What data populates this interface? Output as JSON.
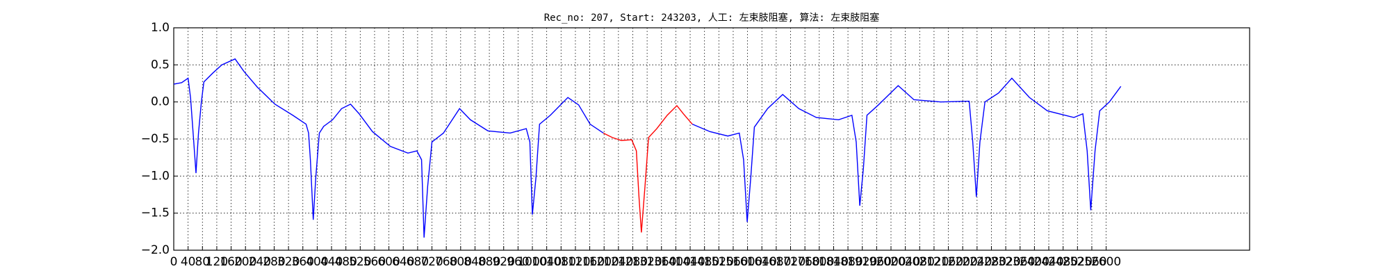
{
  "chart_data": {
    "type": "line",
    "title": "Rec_no: 207, Start: 243203, 人工: 左束肢阻塞, 算法: 左束肢阻塞",
    "xlim": [
      0,
      3000
    ],
    "ylim": [
      -2.0,
      1.0
    ],
    "xticks": [
      0,
      40,
      80,
      120,
      160,
      200,
      240,
      280,
      320,
      360,
      400,
      440,
      480,
      520,
      560,
      600,
      640,
      680,
      720,
      760,
      800,
      840,
      880,
      920,
      960,
      1000,
      1040,
      1080,
      1120,
      1160,
      1200,
      1240,
      1280,
      1320,
      1360,
      1400,
      1440,
      1480,
      1520,
      1560,
      1600,
      1640,
      1680,
      1720,
      1760,
      1800,
      1840,
      1880,
      1920,
      1960,
      2000,
      2040,
      2080,
      2120,
      2160,
      2200,
      2240,
      2280,
      2320,
      2360,
      2400,
      2440,
      2480,
      2520,
      2560,
      2600
    ],
    "yticks": [
      {
        "value": -2.0,
        "label": "−2.0"
      },
      {
        "value": -1.5,
        "label": "−1.5"
      },
      {
        "value": -1.0,
        "label": "−1.0"
      },
      {
        "value": -0.5,
        "label": "−0.5"
      },
      {
        "value": 0.0,
        "label": "0.0"
      },
      {
        "value": 0.5,
        "label": "0.5"
      },
      {
        "value": 1.0,
        "label": "1.0"
      }
    ],
    "grid": true,
    "series": [
      {
        "color": "#0000ff",
        "x": [
          0,
          22,
          40,
          47,
          54,
          62,
          69,
          77,
          84,
          109,
          134,
          171,
          196,
          233,
          282,
          332,
          369,
          376,
          381,
          389,
          396,
          406,
          418,
          443,
          468,
          493,
          517,
          554,
          604,
          653,
          678,
          691,
          698,
          708,
          720,
          752,
          797,
          827,
          876,
          938,
          983,
          993,
          1000,
          1010,
          1020,
          1050,
          1099,
          1129,
          1161,
          1198,
          null,
          1446,
          1495,
          1545,
          1577,
          1589,
          1599,
          1609,
          1619,
          1656,
          1698,
          1743,
          1792,
          1854,
          1891,
          1903,
          1913,
          1923,
          1933,
          1965,
          2020,
          2064,
          2139,
          2218,
          2228,
          2238,
          2248,
          2262,
          2300,
          2337,
          2386,
          2436,
          2510,
          2535,
          2547,
          2557,
          2569,
          2582,
          2609,
          2641
        ],
        "values": [
          0.24,
          0.26,
          0.32,
          0.05,
          -0.42,
          -0.96,
          -0.42,
          0.0,
          0.27,
          0.39,
          0.5,
          0.58,
          0.41,
          0.2,
          -0.03,
          -0.18,
          -0.3,
          -0.42,
          -0.78,
          -1.59,
          -1.02,
          -0.42,
          -0.33,
          -0.24,
          -0.09,
          -0.03,
          -0.16,
          -0.4,
          -0.6,
          -0.69,
          -0.66,
          -0.78,
          -1.83,
          -1.14,
          -0.54,
          -0.42,
          -0.09,
          -0.24,
          -0.39,
          -0.42,
          -0.36,
          -0.54,
          -1.52,
          -1.02,
          -0.3,
          -0.18,
          0.06,
          -0.04,
          -0.3,
          -0.42,
          null,
          -0.3,
          -0.4,
          -0.46,
          -0.42,
          -0.78,
          -1.62,
          -1.02,
          -0.34,
          -0.09,
          0.1,
          -0.09,
          -0.21,
          -0.24,
          -0.18,
          -0.54,
          -1.4,
          -0.9,
          -0.18,
          -0.04,
          0.22,
          0.03,
          0.0,
          0.01,
          -0.54,
          -1.28,
          -0.54,
          0.0,
          0.12,
          0.32,
          0.06,
          -0.12,
          -0.21,
          -0.16,
          -0.66,
          -1.46,
          -0.66,
          -0.12,
          0.0,
          0.21
        ]
      },
      {
        "color": "#ff0000",
        "x": [
          1198,
          1223,
          1248,
          1277,
          1290,
          1297,
          1304,
          1314,
          1324,
          1347,
          1376,
          1403,
          1421,
          1446
        ],
        "values": [
          -0.42,
          -0.48,
          -0.52,
          -0.51,
          -0.66,
          -1.26,
          -1.76,
          -1.14,
          -0.48,
          -0.36,
          -0.18,
          -0.05,
          -0.16,
          -0.3
        ]
      }
    ]
  }
}
